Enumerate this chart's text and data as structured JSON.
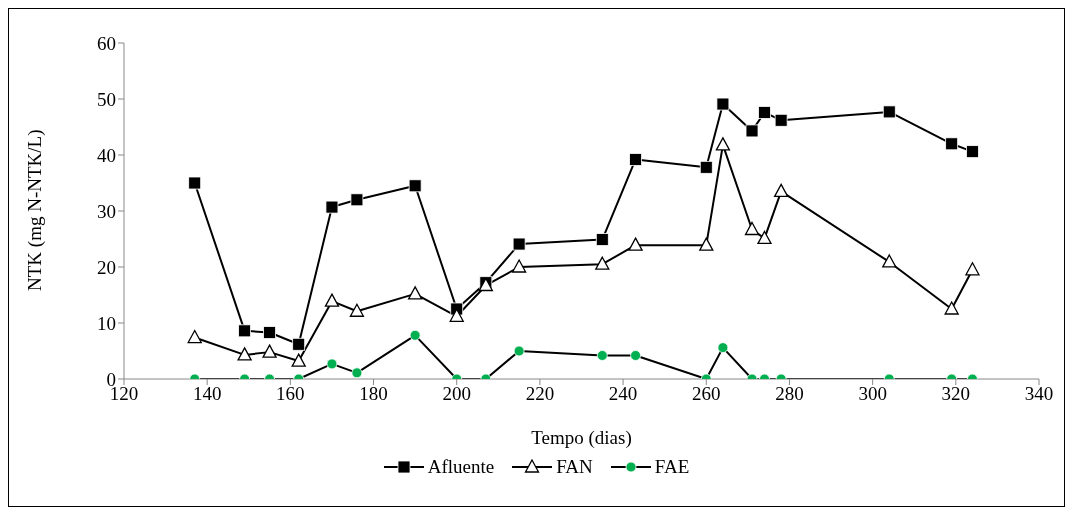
{
  "chart_data": {
    "type": "line",
    "xlabel": "Tempo (dias)",
    "ylabel": "NTK (mg N-NTK/L)",
    "x": [
      137,
      149,
      155,
      162,
      170,
      176,
      190,
      200,
      207,
      215,
      235,
      243,
      260,
      264,
      271,
      274,
      278,
      304,
      319,
      324
    ],
    "series": [
      {
        "name": "Afluente",
        "color": "#000000",
        "marker": "square",
        "values": [
          35.0,
          8.6,
          8.3,
          6.2,
          30.7,
          32.0,
          34.5,
          12.5,
          17.2,
          24.1,
          24.9,
          39.2,
          37.8,
          49.1,
          44.3,
          47.6,
          46.2,
          47.7,
          42.0,
          40.6
        ]
      },
      {
        "name": "FAN",
        "color": "#000000",
        "marker": "triangle",
        "values": [
          7.4,
          4.3,
          4.8,
          3.2,
          13.9,
          12.1,
          15.2,
          11.2,
          16.7,
          20.0,
          20.5,
          23.9,
          23.9,
          41.8,
          26.7,
          25.1,
          33.5,
          20.9,
          12.5,
          19.5
        ]
      },
      {
        "name": "FAE",
        "color": "#00b050",
        "marker": "circle",
        "values": [
          0,
          0,
          0,
          0,
          2.7,
          1.1,
          7.8,
          0,
          0,
          5.0,
          4.2,
          4.2,
          0,
          5.6,
          0,
          0,
          0,
          0,
          0,
          0
        ]
      }
    ],
    "xlim": [
      120,
      340
    ],
    "xticks": [
      120,
      140,
      160,
      180,
      200,
      220,
      240,
      260,
      280,
      300,
      320,
      340
    ],
    "ylim": [
      0,
      60
    ],
    "yticks": [
      0,
      10,
      20,
      30,
      40,
      50,
      60
    ],
    "grid": false,
    "legend": "bottom",
    "line_style": "solid"
  }
}
